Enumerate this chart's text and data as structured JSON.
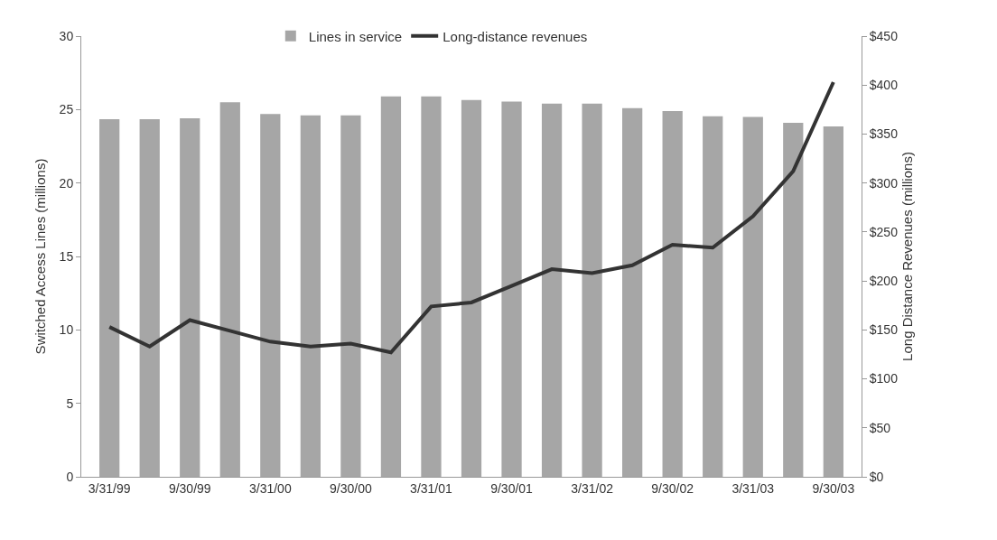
{
  "chart_data": {
    "type": "bar",
    "categories": [
      "3/31/99",
      null,
      "9/30/99",
      null,
      "3/31/00",
      null,
      "9/30/00",
      null,
      "3/31/01",
      null,
      "9/30/01",
      null,
      "3/31/02",
      null,
      "9/30/02",
      null,
      "3/31/03",
      null,
      "9/30/03"
    ],
    "series": [
      {
        "name": "Lines in service",
        "color": "#a6a6a6",
        "values": [
          24.35,
          24.35,
          24.4,
          25.5,
          24.7,
          24.6,
          24.6,
          25.9,
          25.9,
          25.65,
          25.55,
          25.4,
          25.4,
          25.1,
          24.9,
          24.55,
          24.5,
          24.1,
          23.85
        ]
      },
      {
        "name": "Long-distance revenues",
        "type": "line",
        "axis": "y2",
        "color": "#333333",
        "values": [
          153,
          133,
          160,
          149,
          138,
          133,
          136,
          127,
          174,
          178,
          195,
          212,
          208,
          216,
          237,
          234,
          266,
          312,
          403
        ]
      }
    ],
    "ylabel": "Switched Access Lines (millions)",
    "y2label": "Long Distance Revenues (millions)",
    "ylim": [
      0,
      30
    ],
    "yticks": [
      0,
      5,
      10,
      15,
      20,
      25,
      30
    ],
    "y2lim": [
      0,
      450
    ],
    "y2ticks": [
      {
        "value": 0,
        "label": "$0"
      },
      {
        "value": 50,
        "label": "$50"
      },
      {
        "value": 100,
        "label": "$100"
      },
      {
        "value": 150,
        "label": "$150"
      },
      {
        "value": 200,
        "label": "$200"
      },
      {
        "value": 250,
        "label": "$250"
      },
      {
        "value": 300,
        "label": "$300"
      },
      {
        "value": 350,
        "label": "$350"
      },
      {
        "value": 400,
        "label": "$400"
      },
      {
        "value": 450,
        "label": "$450"
      }
    ],
    "grid": false,
    "legend": "top",
    "marker": "none",
    "line_style": "solid"
  }
}
